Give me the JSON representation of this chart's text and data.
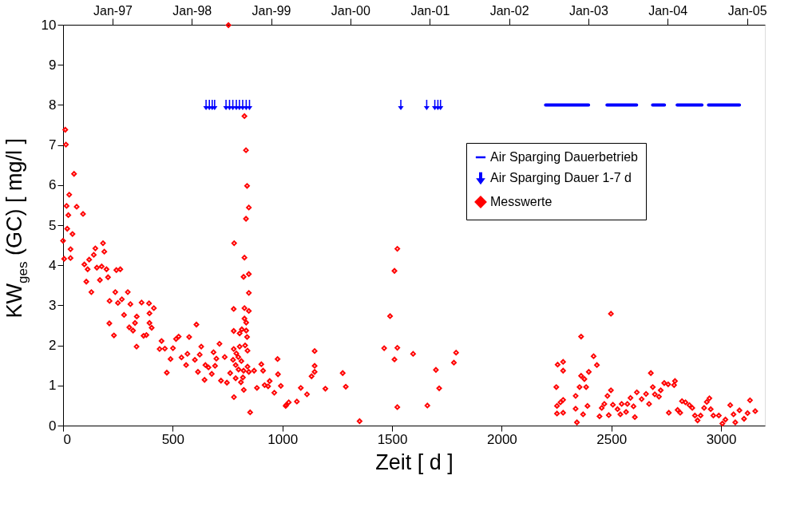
{
  "chart_data": {
    "type": "scatter",
    "xlabel": "Zeit  [ d ]",
    "ylabel": "KW$_{ges}$ (GC)  [ mg/l ]",
    "xlim": [
      0,
      3200
    ],
    "xticks": [
      0,
      500,
      1000,
      1500,
      2000,
      2500,
      3000
    ],
    "ylim": [
      0,
      10
    ],
    "yticks": [
      0,
      1,
      2,
      3,
      4,
      5,
      6,
      7,
      8,
      9,
      10
    ],
    "x2lim": [
      "1996-05-18",
      "2005-03-24"
    ],
    "x2ticks": [
      {
        "value": "1997-01-01",
        "label": "Jan-97"
      },
      {
        "value": "1998-01-01",
        "label": "Jan-98"
      },
      {
        "value": "1999-01-01",
        "label": "Jan-99"
      },
      {
        "value": "2000-01-01",
        "label": "Jan-00"
      },
      {
        "value": "2001-01-01",
        "label": "Jan-01"
      },
      {
        "value": "2002-01-01",
        "label": "Jan-02"
      },
      {
        "value": "2003-01-01",
        "label": "Jan-03"
      },
      {
        "value": "2004-01-01",
        "label": "Jan-04"
      },
      {
        "value": "2005-01-01",
        "label": "Jan-05"
      }
    ],
    "grid": false,
    "legend": "top right",
    "series": [
      {
        "name": "Air Sparging Dauerbetrieb",
        "type": "line",
        "color": "#0000ff",
        "x": [
          2200,
          2396,
          2438,
          2480,
          2615,
          2650,
          2688,
          2742,
          2770,
          2800,
          2913,
          2928,
          2943,
          3084
        ],
        "values": [
          8,
          8,
          null,
          8,
          8,
          null,
          8,
          8,
          null,
          8,
          8,
          null,
          8,
          8
        ]
      },
      {
        "name": "Air Sparging Dauer 1-7 d",
        "color": "#0000ff",
        "x": [
          652,
          667,
          680,
          691,
          743,
          759,
          774,
          790,
          804,
          819,
          835,
          850,
          1540,
          1658,
          1695,
          1709,
          1721
        ],
        "values": [
          8,
          8,
          8,
          8,
          8,
          8,
          8,
          8,
          8,
          8,
          8,
          8,
          8,
          8,
          8,
          8,
          8
        ]
      },
      {
        "name": "Messwerte",
        "type": "scatter",
        "marker": "diamond",
        "color": "#ff0000",
        "x": [
          10,
          13,
          50,
          28,
          16,
          62,
          24,
          91,
          19,
          43,
          0,
          34,
          5,
          34,
          182,
          147,
          188,
          140,
          119,
          97,
          112,
          154,
          176,
          198,
          243,
          261,
          106,
          168,
          205,
          129,
          238,
          295,
          212,
          250,
          268,
          307,
          358,
          392,
          414,
          394,
          278,
          336,
          328,
          211,
          302,
          319,
          394,
          404,
          232,
          367,
          380,
          335,
          449,
          440,
          464,
          501,
          515,
          527,
          575,
          608,
          490,
          473,
          540,
          561,
          567,
          601,
          615,
          623,
          630,
          645,
          649,
          663,
          678,
          686,
          693,
          699,
          713,
          720,
          737,
          747,
          754,
          779,
          778,
          778,
          780,
          827,
          834,
          839,
          847,
          834,
          827,
          823,
          847,
          847,
          827,
          847,
          827,
          835,
          835,
          839,
          841,
          805,
          805,
          778,
          775,
          787,
          799,
          813,
          823,
          841,
          762,
          787,
          811,
          824,
          853,
          847,
          871,
          884,
          904,
          912,
          919,
          935,
          942,
          963,
          978,
          980,
          993,
          1017,
          1029,
          790,
          800,
          815,
          830,
          820,
          1015,
          1066,
          1084,
          1112,
          1133,
          1147,
          1147,
          1147,
          1196,
          1275,
          1289,
          1352,
          1464,
          1491,
          1511,
          1524,
          1511,
          1524,
          1524,
          1596,
          1661,
          1700,
          1715,
          1782,
          1792,
          2498,
          2362,
          2249,
          2255,
          2280,
          2280,
          2252,
          2252,
          2268,
          2280,
          2280,
          2337,
          2337,
          2343,
          2355,
          2362,
          2371,
          2377,
          2385,
          2391,
          2397,
          2419,
          2434,
          2446,
          2456,
          2468,
          2482,
          2488,
          2498,
          2507,
          2528,
          2541,
          2547,
          2567,
          2573,
          2587,
          2601,
          2607,
          2616,
          2638,
          2658,
          2672,
          2680,
          2689,
          2698,
          2717,
          2725,
          2741,
          2759,
          2762,
          2786,
          2790,
          2802,
          2814,
          2822,
          2838,
          2856,
          2869,
          2881,
          2893,
          2907,
          2923,
          2935,
          2947,
          2953,
          2965,
          2990,
          3006,
          3020,
          3042,
          3057,
          3065,
          3084,
          3105,
          3121,
          3132,
          3156
        ],
        "values": [
          7.38,
          7.01,
          6.28,
          5.76,
          5.48,
          5.46,
          5.25,
          5.28,
          4.91,
          4.78,
          4.61,
          4.4,
          4.16,
          4.18,
          4.55,
          4.42,
          4.34,
          4.26,
          4.14,
          4.02,
          3.9,
          3.94,
          3.97,
          3.9,
          3.88,
          3.9,
          3.59,
          3.63,
          3.7,
          3.33,
          3.33,
          3.33,
          3.11,
          3.06,
          3.15,
          3.03,
          3.07,
          3.05,
          2.93,
          2.8,
          2.76,
          2.72,
          2.56,
          2.55,
          2.45,
          2.37,
          2.56,
          2.44,
          2.25,
          2.24,
          2.26,
          1.97,
          2.11,
          1.91,
          1.92,
          1.93,
          2.16,
          2.22,
          2.21,
          2.52,
          1.66,
          1.32,
          1.7,
          1.51,
          1.79,
          1.64,
          1.34,
          1.77,
          1.97,
          1.14,
          1.51,
          1.45,
          1.29,
          1.83,
          1.49,
          1.67,
          2.04,
          1.12,
          1.71,
          1.07,
          9.99,
          0.71,
          2.91,
          2.36,
          4.55,
          7.72,
          6.87,
          5.98,
          5.44,
          5.16,
          4.19,
          3.71,
          3.78,
          3.31,
          2.93,
          2.86,
          2.67,
          2.57,
          2.37,
          2.21,
          1.87,
          2.3,
          1.97,
          1.91,
          1.64,
          1.51,
          1.71,
          1.61,
          1.37,
          1.47,
          1.31,
          1.18,
          1.08,
          0.89,
          0.33,
          1.34,
          1.37,
          0.94,
          1.53,
          1.37,
          1.01,
          0.98,
          1.11,
          0.82,
          1.66,
          1.28,
          0.99,
          0.51,
          0.58,
          1.8,
          1.4,
          2.4,
          2.0,
          1.2,
          0.49,
          0.6,
          0.94,
          0.78,
          1.23,
          1.34,
          1.49,
          1.86,
          0.92,
          1.31,
          0.97,
          0.11,
          1.93,
          2.73,
          3.86,
          4.41,
          1.65,
          1.94,
          0.46,
          1.79,
          0.5,
          1.39,
          0.93,
          1.57,
          1.82,
          2.79,
          2.22,
          0.96,
          1.52,
          1.59,
          1.37,
          0.49,
          0.3,
          0.58,
          0.64,
          0.32,
          0.74,
          0.42,
          0.08,
          0.96,
          1.24,
          0.28,
          1.16,
          0.96,
          0.49,
          1.34,
          1.73,
          1.51,
          0.23,
          0.44,
          0.54,
          0.74,
          0.26,
          0.88,
          0.52,
          0.41,
          0.28,
          0.54,
          0.34,
          0.54,
          0.69,
          0.48,
          0.21,
          0.83,
          0.66,
          0.79,
          0.54,
          1.31,
          0.96,
          0.78,
          0.72,
          0.88,
          1.06,
          1.03,
          0.32,
          1.01,
          1.11,
          0.39,
          0.32,
          0.61,
          0.58,
          0.51,
          0.44,
          0.25,
          0.13,
          0.25,
          0.44,
          0.59,
          0.68,
          0.41,
          0.25,
          0.25,
          0.05,
          0.15,
          0.51,
          0.28,
          0.08,
          0.38,
          0.17,
          0.31,
          0.63,
          0.36
        ]
      }
    ]
  }
}
